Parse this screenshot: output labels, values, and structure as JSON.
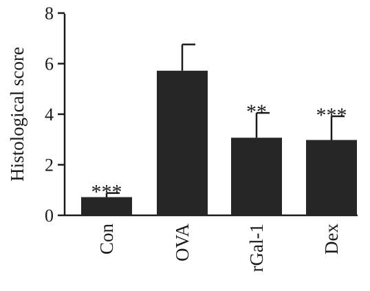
{
  "chart_data": {
    "type": "bar",
    "categories": [
      "Con",
      "OVA",
      "rGal-1",
      "Dex"
    ],
    "values": [
      0.72,
      5.72,
      3.07,
      2.98
    ],
    "error_upper": [
      0.88,
      6.76,
      4.05,
      3.92
    ],
    "significance": [
      "***",
      "",
      "**",
      "***"
    ],
    "title": "",
    "xlabel": "",
    "ylabel": "Histological score",
    "ylim": [
      0,
      8
    ],
    "yticks": [
      "0",
      "2",
      "4",
      "6",
      "8"
    ],
    "grid": false,
    "bar_color": "#262626"
  }
}
